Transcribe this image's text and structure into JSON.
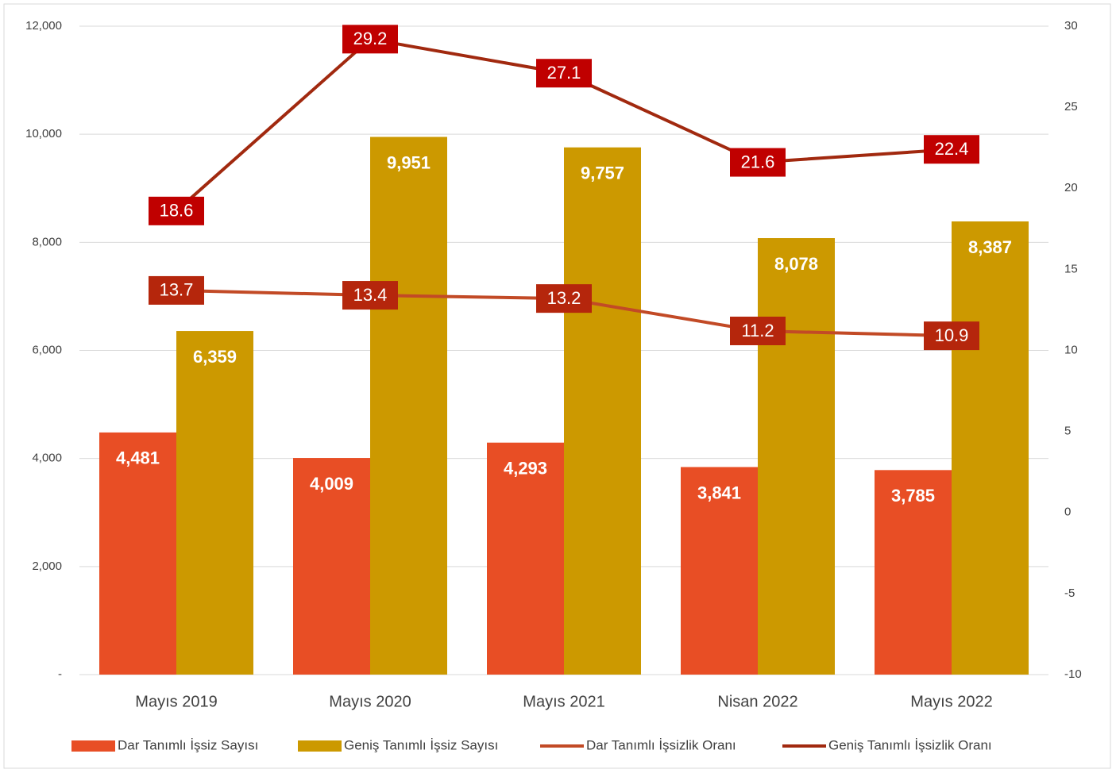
{
  "chart_data": {
    "type": "bar",
    "categories": [
      "Mayıs 2019",
      "Mayıs 2020",
      "Mayıs 2021",
      "Nisan 2022",
      "Mayıs 2022"
    ],
    "series": [
      {
        "name": "Dar Tanımlı İşsiz Sayısı",
        "type": "bar",
        "color": "#e84e25",
        "values": [
          4481,
          4009,
          4293,
          3841,
          3785
        ],
        "value_labels": [
          "4,481",
          "4,009",
          "4,293",
          "3,841",
          "3,785"
        ]
      },
      {
        "name": "Geniş Tanımlı İşsiz Sayısı",
        "type": "bar",
        "color": "#cc9900",
        "values": [
          6359,
          9951,
          9757,
          8078,
          8387
        ],
        "value_labels": [
          "6,359",
          "9,951",
          "9,757",
          "8,078",
          "8,387"
        ]
      },
      {
        "name": "Dar Tanımlı İşsizlik Oranı",
        "type": "line",
        "axis": "y2",
        "color": "#c24a26",
        "label_color": "#b5260c",
        "values": [
          13.7,
          13.4,
          13.2,
          11.2,
          10.9
        ]
      },
      {
        "name": "Geniş Tanımlı İşsizlik Oranı",
        "type": "line",
        "axis": "y2",
        "color": "#a1290f",
        "label_color": "#c00000",
        "values": [
          18.6,
          29.2,
          27.1,
          21.6,
          22.4
        ]
      }
    ],
    "ylim": [
      0,
      12000
    ],
    "yticks": [
      {
        "value": 0,
        "label": "-"
      },
      {
        "value": 2000,
        "label": "2,000"
      },
      {
        "value": 4000,
        "label": "4,000"
      },
      {
        "value": 6000,
        "label": "6,000"
      },
      {
        "value": 8000,
        "label": "8,000"
      },
      {
        "value": 10000,
        "label": "10,000"
      },
      {
        "value": 12000,
        "label": "12,000"
      }
    ],
    "y2lim": [
      -10,
      30
    ],
    "y2ticks": [
      -10,
      -5,
      0,
      5,
      10,
      15,
      20,
      25,
      30
    ],
    "grid": true,
    "legend": "bottom"
  }
}
